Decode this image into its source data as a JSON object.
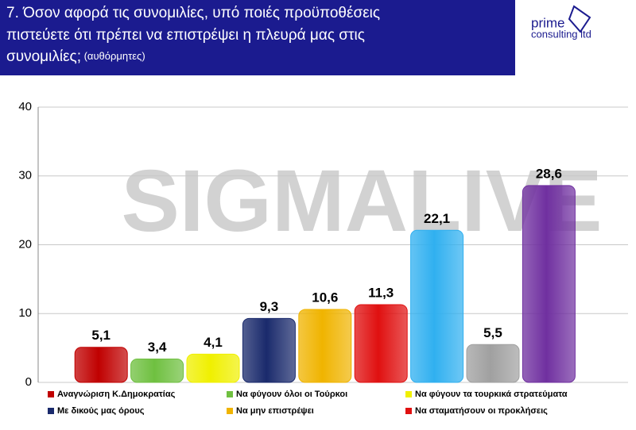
{
  "header": {
    "title": "7. Όσον αφορά τις συνομιλίες, υπό ποιές προϋποθέσεις πιστεύετε ότι πρέπει να επιστρέψει η πλευρά μας στις συνομιλίες;",
    "subtitle": "(αυθόρμητες)",
    "logo_top": "prime",
    "logo_bottom": "consulting ltd"
  },
  "watermark": "SIGMALIVE",
  "chart_data": {
    "type": "bar",
    "categories": [
      "Αναγνώριση Κ.Δημοκρατίας",
      "Να φύγουν όλοι οι Τούρκοι",
      "Να φύγουν τα τουρκικά στρατεύματα",
      "Με δικούς μας όρους",
      "Να μην επιστρέψει",
      "Να σταματήσουν οι προκλήσεις",
      null,
      null,
      null
    ],
    "values": [
      5.1,
      3.4,
      4.1,
      9.3,
      10.6,
      11.3,
      22.1,
      5.5,
      28.6
    ],
    "value_labels": [
      "5,1",
      "3,4",
      "4,1",
      "9,3",
      "10,6",
      "11,3",
      "22,1",
      "5,5",
      "28,6"
    ],
    "colors": [
      "#c00000",
      "#6fc040",
      "#f0f000",
      "#1a2a6c",
      "#f0b400",
      "#e01010",
      "#30b0f0",
      "#a0a0a0",
      "#7030a0"
    ],
    "ylim": [
      0,
      40
    ],
    "yticks": [
      0,
      10,
      20,
      30,
      40
    ],
    "grid": true
  }
}
